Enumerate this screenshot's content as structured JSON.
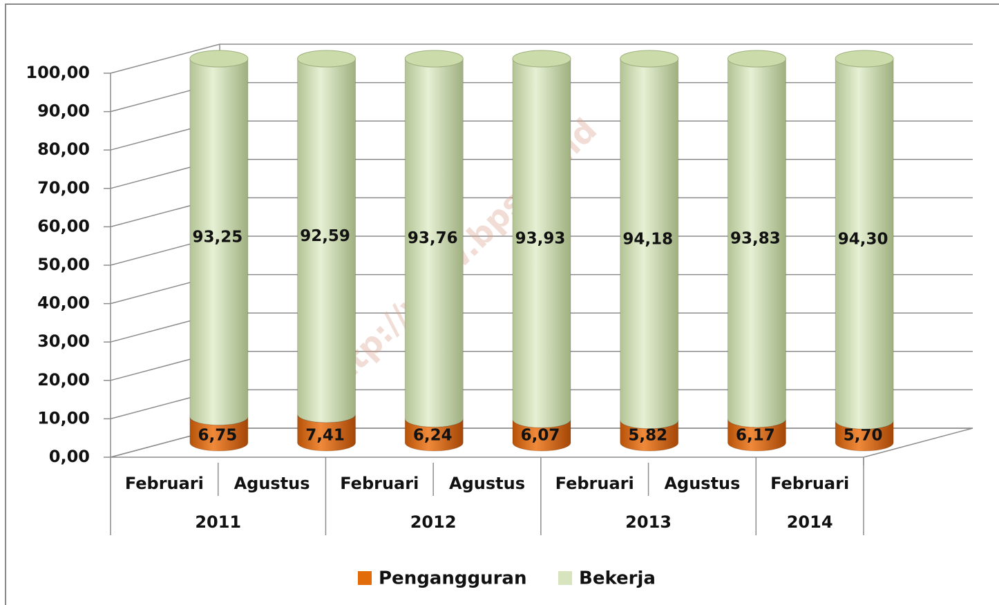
{
  "chart_data": {
    "type": "stacked-cylinder",
    "categories": [
      "Februari",
      "Agustus",
      "Februari",
      "Agustus",
      "Februari",
      "Agustus",
      "Februari"
    ],
    "category_groups": [
      {
        "label": "2011",
        "count": 2
      },
      {
        "label": "2012",
        "count": 2
      },
      {
        "label": "2013",
        "count": 2
      },
      {
        "label": "2014",
        "count": 1
      }
    ],
    "series": [
      {
        "name": "Pengangguran",
        "color": "#e26b0a",
        "values": [
          6.75,
          7.41,
          6.24,
          6.07,
          5.82,
          6.17,
          5.7
        ],
        "value_labels": [
          "6,75",
          "7,41",
          "6,24",
          "6,07",
          "5,82",
          "6,17",
          "5,70"
        ]
      },
      {
        "name": "Bekerja",
        "color": "#d7e4bd",
        "values": [
          93.25,
          92.59,
          93.76,
          93.93,
          94.18,
          93.83,
          94.3
        ],
        "value_labels": [
          "93,25",
          "92,59",
          "93,76",
          "93,93",
          "94,18",
          "93,83",
          "94,30"
        ]
      }
    ],
    "ylim": [
      0,
      100
    ],
    "yticks": [
      {
        "value": 0,
        "label": "0,00"
      },
      {
        "value": 10,
        "label": "10,00"
      },
      {
        "value": 20,
        "label": "20,00"
      },
      {
        "value": 30,
        "label": "30,00"
      },
      {
        "value": 40,
        "label": "40,00"
      },
      {
        "value": 50,
        "label": "50,00"
      },
      {
        "value": 60,
        "label": "60,00"
      },
      {
        "value": 70,
        "label": "70,00"
      },
      {
        "value": 80,
        "label": "80,00"
      },
      {
        "value": 90,
        "label": "90,00"
      },
      {
        "value": 100,
        "label": "100,00"
      }
    ],
    "grid": true,
    "legend": "bottom",
    "watermark": "http://www.bps.go.id"
  }
}
